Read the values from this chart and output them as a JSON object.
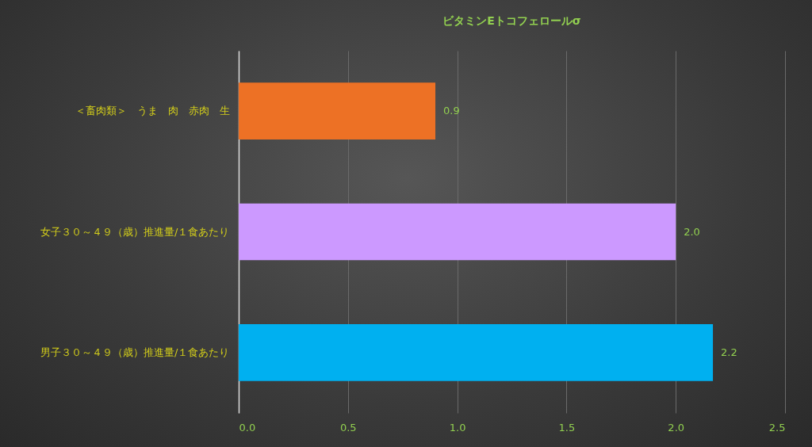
{
  "chart_data": {
    "type": "bar",
    "orientation": "horizontal",
    "title": "ビタミンEトコフェロールσ",
    "categories": [
      "＜畜肉類＞　うま　肉　赤肉　生",
      "女子３０～４９（歳）推進量/１食あたり",
      "男子３０～４９（歳）推進量/１食あたり"
    ],
    "values": [
      0.9,
      2.0,
      2.17
    ],
    "colors": [
      "#ed7125",
      "#cc99ff",
      "#00b0f0"
    ],
    "value_labels": [
      "0.9",
      "2.0",
      "2.2"
    ],
    "xlim": [
      0,
      2.5
    ],
    "xticks": [
      {
        "value": 0,
        "label": "0.0"
      },
      {
        "value": 0.5,
        "label": "0.5"
      },
      {
        "value": 1,
        "label": "1.0"
      },
      {
        "value": 1.5,
        "label": "1.5"
      },
      {
        "value": 2,
        "label": "2.0"
      },
      {
        "value": 2.5,
        "label": "2.5"
      }
    ],
    "grid": "x"
  }
}
